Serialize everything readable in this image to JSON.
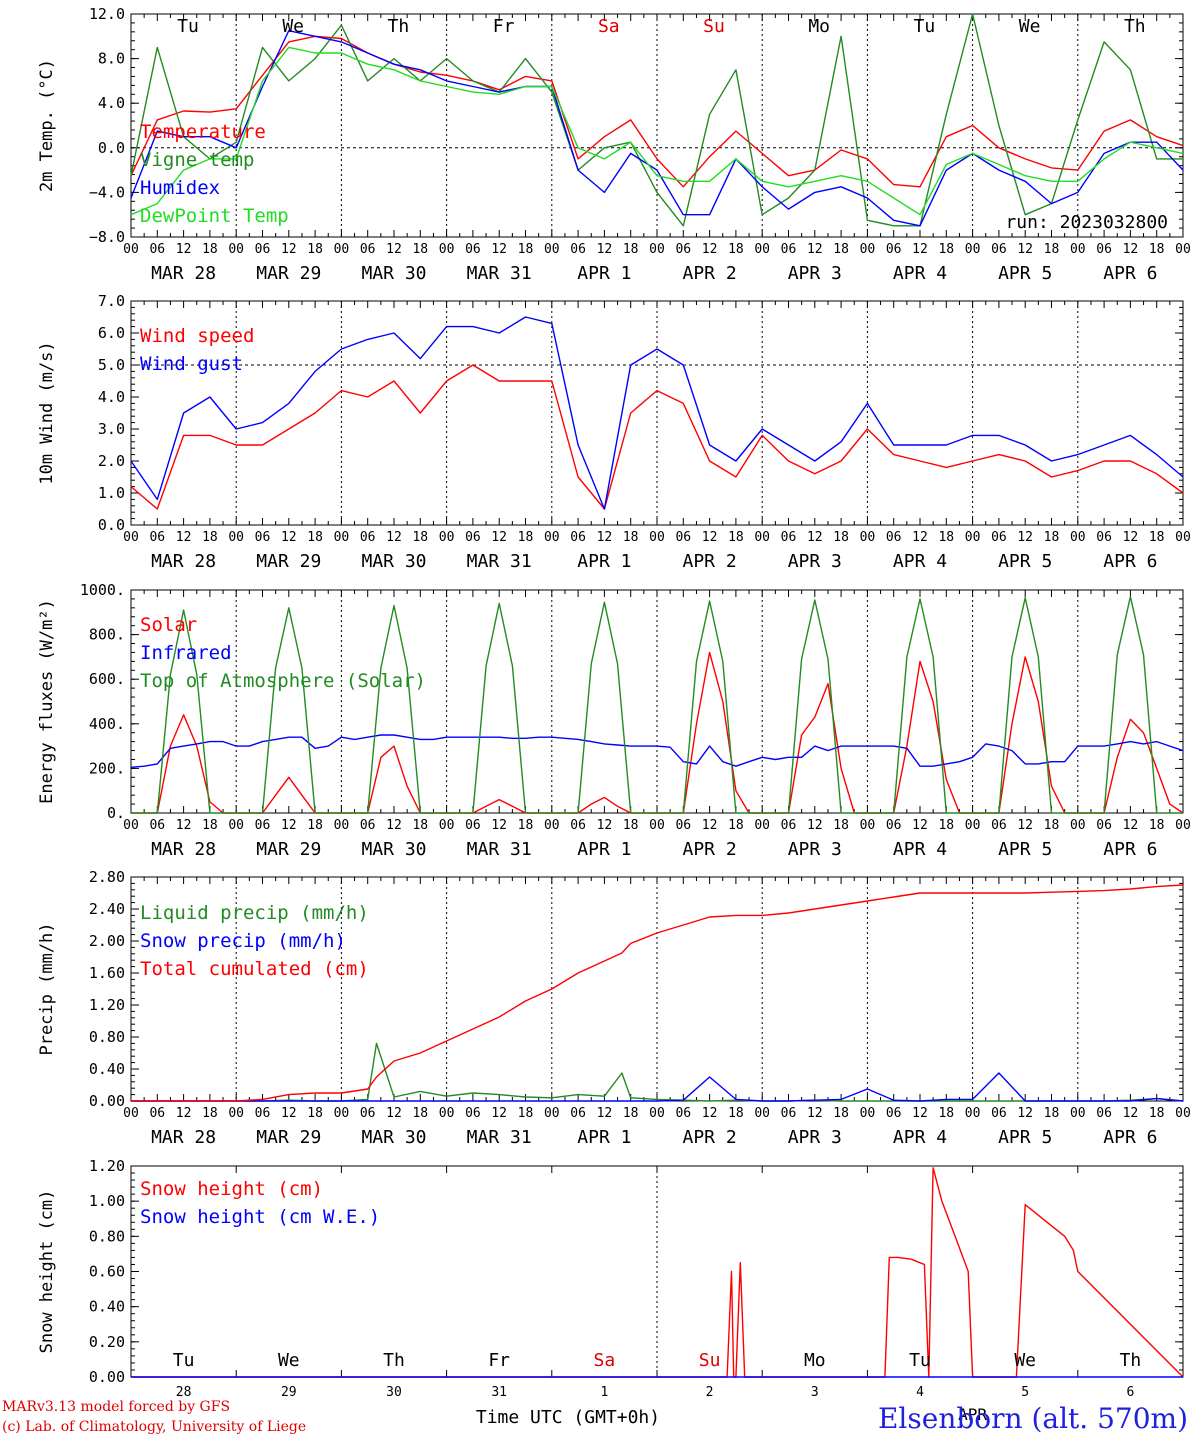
{
  "run_label": "run: 2023032800",
  "time_axis": {
    "hour_ticks": [
      "00",
      "06",
      "12",
      "18"
    ],
    "day_labels": [
      "MAR 28",
      "MAR 29",
      "MAR 30",
      "MAR 31",
      "APR  1",
      "APR  2",
      "APR  3",
      "APR  4",
      "APR  5",
      "APR  6"
    ],
    "weekdays": [
      "Tu",
      "We",
      "Th",
      "Fr",
      "Sa",
      "Su",
      "Mo",
      "Tu",
      "We",
      "Th"
    ],
    "weekend_color": "#e00000",
    "day_numbers": [
      "28",
      "29",
      "30",
      "31",
      "1",
      "2",
      "3",
      "4",
      "5",
      "6"
    ],
    "month_label": "APR",
    "xlabel": "Time UTC (GMT+0h)"
  },
  "footer": {
    "model": "MARv3.13 model forced by GFS",
    "copyright": "(c) Lab. of Climatology, University of Liege",
    "station": "Elsenborn (alt. 570m)"
  },
  "chart_data": [
    {
      "type": "line",
      "ylabel": "2m Temp. (°C)",
      "ylim": [
        -8,
        12
      ],
      "yticks": [
        "12.0",
        "8.0",
        "4.0",
        "0.0",
        "−4.0",
        "−8.0"
      ],
      "x_unit": "hours since MAR 28 00 UTC",
      "x": [
        0,
        6,
        12,
        18,
        24,
        30,
        36,
        42,
        48,
        54,
        60,
        66,
        72,
        78,
        84,
        90,
        96,
        102,
        108,
        114,
        120,
        126,
        132,
        138,
        144,
        150,
        156,
        162,
        168,
        174,
        180,
        186,
        192,
        198,
        204,
        210,
        216,
        222,
        228,
        234,
        240
      ],
      "series": [
        {
          "name": "Temperature",
          "color": "#ff0000",
          "values": [
            -2.5,
            2.5,
            3.3,
            3.2,
            3.5,
            6.5,
            9.5,
            10.0,
            9.8,
            8.5,
            7.5,
            6.8,
            6.5,
            6.0,
            5.2,
            6.4,
            6.0,
            -1.0,
            1.0,
            2.5,
            -1.0,
            -3.5,
            -0.8,
            1.5,
            -0.5,
            -2.5,
            -2.0,
            -0.2,
            -1.0,
            -3.3,
            -3.5,
            1.0,
            2.0,
            0.0,
            -1.0,
            -1.8,
            -2.0,
            1.5,
            2.5,
            1.0,
            0.2
          ]
        },
        {
          "name": "Vigne temp",
          "color": "#228b22",
          "values": [
            -2.5,
            9.0,
            1.0,
            -1.0,
            0.5,
            9.0,
            6.0,
            8.0,
            11.0,
            6.0,
            8.0,
            6.0,
            8.0,
            6.0,
            5.0,
            8.0,
            5.0,
            -2.0,
            0.0,
            0.5,
            -4.0,
            -7.0,
            3.0,
            7.0,
            -6.0,
            -4.5,
            -2.0,
            10.0,
            -6.5,
            -7.0,
            -7.0,
            3.0,
            12.0,
            2.0,
            -6.0,
            -5.0,
            2.5,
            9.5,
            7.0,
            -1.0,
            -1.0
          ]
        },
        {
          "name": "Humidex",
          "color": "#0000ff",
          "values": [
            -4.5,
            1.5,
            1.0,
            1.0,
            0.0,
            5.5,
            10.5,
            10.0,
            9.5,
            8.5,
            7.5,
            7.0,
            6.0,
            5.5,
            5.0,
            5.5,
            5.5,
            -2.0,
            -4.0,
            -0.5,
            -2.0,
            -6.0,
            -6.0,
            -1.0,
            -3.5,
            -5.5,
            -4.0,
            -3.5,
            -4.5,
            -6.5,
            -7.0,
            -2.0,
            -0.5,
            -2.0,
            -3.0,
            -5.0,
            -4.0,
            -0.5,
            0.5,
            0.5,
            -2.0
          ]
        },
        {
          "name": "DewPoint Temp",
          "color": "#22dd22",
          "values": [
            -6.0,
            -5.0,
            -2.0,
            -1.0,
            -1.0,
            6.0,
            9.0,
            8.5,
            8.5,
            7.5,
            7.0,
            6.0,
            5.5,
            5.0,
            4.8,
            5.5,
            5.5,
            0.0,
            -1.0,
            0.5,
            -2.5,
            -3.0,
            -3.0,
            -1.0,
            -3.0,
            -3.5,
            -3.0,
            -2.5,
            -3.0,
            -4.5,
            -6.0,
            -1.5,
            -0.5,
            -1.5,
            -2.5,
            -3.0,
            -3.0,
            -1.0,
            0.5,
            0.0,
            -0.5
          ]
        }
      ],
      "legend_placement": "left"
    },
    {
      "type": "line",
      "ylabel": "10m Wind (m/s)",
      "ylim": [
        0,
        7
      ],
      "yticks": [
        "7.0",
        "6.0",
        "5.0",
        "4.0",
        "3.0",
        "2.0",
        "1.0",
        "0.0"
      ],
      "x_unit": "hours since MAR 28 00 UTC",
      "x": [
        0,
        6,
        12,
        18,
        24,
        30,
        36,
        42,
        48,
        54,
        60,
        66,
        72,
        78,
        84,
        90,
        96,
        102,
        108,
        114,
        120,
        126,
        132,
        138,
        144,
        150,
        156,
        162,
        168,
        174,
        180,
        186,
        192,
        198,
        204,
        210,
        216,
        222,
        228,
        234,
        240
      ],
      "series": [
        {
          "name": "Wind speed",
          "color": "#ff0000",
          "values": [
            1.2,
            0.5,
            2.8,
            2.8,
            2.5,
            2.5,
            3.0,
            3.5,
            4.2,
            4.0,
            4.5,
            3.5,
            4.5,
            5.0,
            4.5,
            4.5,
            4.5,
            1.5,
            0.5,
            3.5,
            4.2,
            3.8,
            2.0,
            1.5,
            2.8,
            2.0,
            1.6,
            2.0,
            3.0,
            2.2,
            2.0,
            1.8,
            2.0,
            2.2,
            2.0,
            1.5,
            1.7,
            2.0,
            2.0,
            1.6,
            1.0
          ]
        },
        {
          "name": "Wind gust",
          "color": "#0000ff",
          "values": [
            2.0,
            0.8,
            3.5,
            4.0,
            3.0,
            3.2,
            3.8,
            4.8,
            5.5,
            5.8,
            6.0,
            5.2,
            6.2,
            6.2,
            6.0,
            6.5,
            6.3,
            2.5,
            0.5,
            5.0,
            5.5,
            5.0,
            2.5,
            2.0,
            3.0,
            2.5,
            2.0,
            2.6,
            3.8,
            2.5,
            2.5,
            2.5,
            2.8,
            2.8,
            2.5,
            2.0,
            2.2,
            2.5,
            2.8,
            2.2,
            1.5
          ]
        }
      ],
      "legend_placement": "left"
    },
    {
      "type": "line",
      "ylabel": "Energy fluxes (W/m²)",
      "ylim": [
        0,
        1000
      ],
      "yticks": [
        "1000.",
        "800.",
        "600.",
        "400.",
        "200.",
        "0."
      ],
      "x_unit": "hours since MAR 28 00 UTC",
      "x": [
        0,
        3,
        6,
        9,
        12,
        15,
        18,
        21,
        24,
        27,
        30,
        33,
        36,
        39,
        42,
        45,
        48,
        51,
        54,
        57,
        60,
        63,
        66,
        69,
        72,
        75,
        78,
        81,
        84,
        87,
        90,
        93,
        96,
        99,
        102,
        105,
        108,
        111,
        114,
        117,
        120,
        123,
        126,
        129,
        132,
        135,
        138,
        141,
        144,
        147,
        150,
        153,
        156,
        159,
        162,
        165,
        168,
        171,
        174,
        177,
        180,
        183,
        186,
        189,
        192,
        195,
        198,
        201,
        204,
        207,
        210,
        213,
        216,
        219,
        222,
        225,
        228,
        231,
        234,
        237,
        240
      ],
      "series": [
        {
          "name": "Solar",
          "color": "#ff0000",
          "values": [
            0,
            0,
            0,
            300,
            440,
            300,
            50,
            0,
            0,
            0,
            0,
            80,
            160,
            80,
            0,
            0,
            0,
            0,
            0,
            250,
            300,
            120,
            0,
            0,
            0,
            0,
            0,
            30,
            60,
            30,
            0,
            0,
            0,
            0,
            0,
            40,
            70,
            30,
            0,
            0,
            0,
            0,
            0,
            400,
            720,
            500,
            100,
            0,
            0,
            0,
            0,
            350,
            430,
            580,
            200,
            0,
            0,
            0,
            0,
            300,
            680,
            500,
            150,
            0,
            0,
            0,
            0,
            400,
            700,
            500,
            120,
            0,
            0,
            0,
            0,
            250,
            420,
            360,
            200,
            40,
            0
          ]
        },
        {
          "name": "Infrared",
          "color": "#0000ff",
          "values": [
            205,
            210,
            220,
            290,
            300,
            310,
            320,
            320,
            300,
            300,
            320,
            330,
            340,
            340,
            290,
            300,
            340,
            330,
            340,
            350,
            350,
            340,
            330,
            330,
            340,
            340,
            340,
            340,
            340,
            335,
            335,
            340,
            340,
            335,
            330,
            320,
            310,
            305,
            300,
            300,
            300,
            295,
            230,
            220,
            300,
            230,
            210,
            230,
            250,
            240,
            250,
            250,
            300,
            280,
            300,
            300,
            300,
            300,
            300,
            290,
            210,
            210,
            220,
            230,
            250,
            310,
            300,
            280,
            220,
            220,
            230,
            230,
            300,
            300,
            300,
            310,
            320,
            310,
            320,
            300,
            280
          ]
        },
        {
          "name": "Top of Atmosphere (Solar)",
          "color": "#228b22",
          "values": [
            0,
            0,
            0,
            620,
            910,
            620,
            0,
            0,
            0,
            0,
            0,
            650,
            920,
            650,
            0,
            0,
            0,
            0,
            0,
            650,
            930,
            650,
            0,
            0,
            0,
            0,
            0,
            660,
            940,
            660,
            0,
            0,
            0,
            0,
            0,
            670,
            945,
            670,
            0,
            0,
            0,
            0,
            0,
            680,
            950,
            680,
            0,
            0,
            0,
            0,
            0,
            690,
            955,
            690,
            0,
            0,
            0,
            0,
            0,
            700,
            960,
            700,
            0,
            0,
            0,
            0,
            0,
            700,
            965,
            700,
            0,
            0,
            0,
            0,
            0,
            710,
            970,
            710,
            0,
            0,
            0
          ]
        }
      ],
      "legend_placement": "left"
    },
    {
      "type": "line",
      "ylabel": "Precip (mm/h)",
      "ylim": [
        0,
        2.8
      ],
      "yticks": [
        "2.80",
        "2.40",
        "2.00",
        "1.60",
        "1.20",
        "0.80",
        "0.40",
        "0.00"
      ],
      "x_unit": "hours since MAR 28 00 UTC",
      "x": [
        0,
        6,
        12,
        18,
        24,
        30,
        36,
        42,
        48,
        54,
        56,
        60,
        66,
        72,
        78,
        84,
        90,
        96,
        102,
        108,
        112,
        114,
        120,
        126,
        132,
        138,
        144,
        150,
        156,
        162,
        168,
        174,
        180,
        186,
        192,
        198,
        204,
        210,
        216,
        222,
        228,
        234,
        240
      ],
      "series": [
        {
          "name": "Liquid precip (mm/h)",
          "color": "#228b22",
          "values": [
            0,
            0,
            0,
            0,
            0,
            0,
            0.01,
            0,
            0,
            0.02,
            0.72,
            0.05,
            0.12,
            0.06,
            0.1,
            0.08,
            0.05,
            0.04,
            0.08,
            0.06,
            0.35,
            0.04,
            0.02,
            0.01,
            0,
            0.01,
            0,
            0,
            0.01,
            0,
            0,
            0,
            0,
            0,
            0,
            0,
            0,
            0,
            0,
            0,
            0.01,
            0.03,
            0
          ]
        },
        {
          "name": "Snow precip (mm/h)",
          "color": "#0000ff",
          "values": [
            0,
            0,
            0,
            0,
            0,
            0,
            0,
            0,
            0,
            0,
            0,
            0,
            0,
            0,
            0,
            0,
            0,
            0,
            0,
            0,
            0,
            0,
            0,
            0.01,
            0.3,
            0.02,
            0,
            0,
            0.01,
            0.02,
            0.15,
            0.01,
            0,
            0.02,
            0.02,
            0.35,
            0,
            0,
            0,
            0,
            0,
            0.03,
            0
          ]
        },
        {
          "name": "Total cumulated (cm)",
          "color": "#ff0000",
          "values": [
            0,
            0,
            0,
            0,
            0,
            0.02,
            0.08,
            0.1,
            0.1,
            0.15,
            0.3,
            0.5,
            0.6,
            0.75,
            0.9,
            1.05,
            1.25,
            1.4,
            1.6,
            1.75,
            1.85,
            1.97,
            2.1,
            2.2,
            2.3,
            2.32,
            2.32,
            2.35,
            2.4,
            2.45,
            2.5,
            2.55,
            2.6,
            2.6,
            2.6,
            2.6,
            2.6,
            2.61,
            2.62,
            2.63,
            2.65,
            2.68,
            2.7
          ]
        }
      ],
      "legend_placement": "left"
    },
    {
      "type": "line",
      "ylabel": "Snow height (cm)",
      "ylim": [
        0,
        1.2
      ],
      "yticks": [
        "1.20",
        "1.00",
        "0.80",
        "0.60",
        "0.40",
        "0.20",
        "0.00"
      ],
      "x_unit": "hours since MAR 28 00 UTC",
      "x": [
        0,
        136,
        137,
        137.5,
        138,
        139,
        140,
        141,
        172,
        173,
        174,
        175,
        178,
        181,
        182,
        183,
        185,
        188,
        191,
        192,
        193,
        199,
        202,
        204,
        205,
        206,
        209,
        213,
        215,
        216,
        240
      ],
      "series": [
        {
          "name": "Snow height (cm)",
          "color": "#ff0000",
          "values": [
            0,
            0,
            0.6,
            0,
            0,
            0.65,
            0,
            0,
            0,
            0.68,
            0.68,
            0.68,
            0.67,
            0.64,
            0,
            1.19,
            1.0,
            0.8,
            0.6,
            0,
            0,
            0,
            0,
            0.98,
            0.96,
            0.94,
            0.88,
            0.8,
            0.72,
            0.6,
            0
          ]
        },
        {
          "name": "Snow height (cm W.E.)",
          "color": "#0000ff",
          "values": [
            0,
            0,
            0,
            0,
            0,
            0,
            0,
            0,
            0,
            0,
            0,
            0,
            0,
            0,
            0,
            0,
            0,
            0,
            0,
            0,
            0,
            0,
            0,
            0,
            0,
            0,
            0,
            0,
            0,
            0,
            0
          ]
        }
      ],
      "legend_placement": "left"
    }
  ]
}
